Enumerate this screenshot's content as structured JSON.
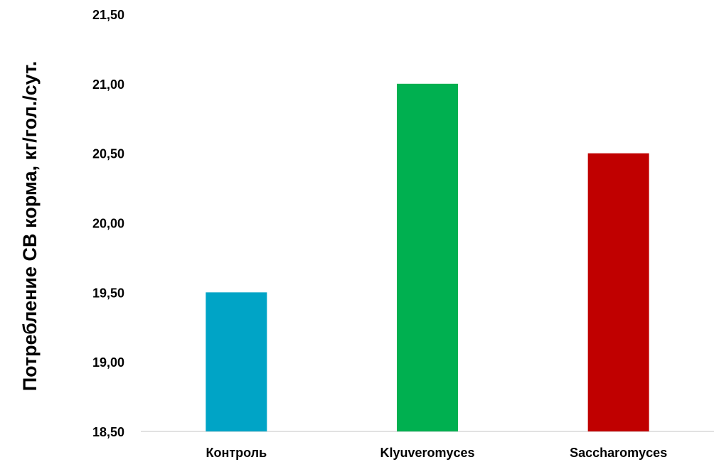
{
  "chart_data": {
    "type": "bar",
    "title": "",
    "xlabel": "",
    "ylabel": "Потребление СВ корма, кг/гол./сут.",
    "categories": [
      "Контроль",
      "Klyuveromyces",
      "Saccharomyces"
    ],
    "values": [
      19.5,
      21.0,
      20.5
    ],
    "colors": [
      "#00A4C6",
      "#00B050",
      "#C00000"
    ],
    "ylim": [
      18.5,
      21.5
    ],
    "yticks": [
      18.5,
      19.0,
      19.5,
      20.0,
      20.5,
      21.0,
      21.5
    ],
    "ytick_labels": [
      "18,50",
      "19,00",
      "19,50",
      "20,00",
      "20,50",
      "21,00",
      "21,50"
    ],
    "grid": false,
    "legend": "none"
  }
}
